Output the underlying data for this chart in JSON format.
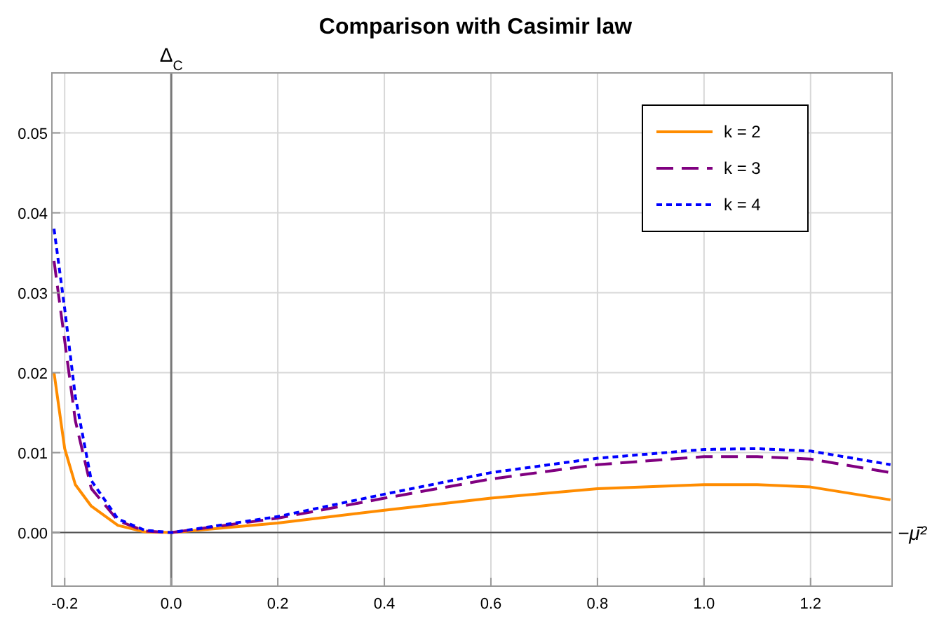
{
  "chart_data": {
    "type": "line",
    "title": "Comparison with Casimir law",
    "xlabel": "−μ̄²",
    "ylabel": "Δ$_{C}$",
    "x": [
      -0.22,
      -0.2,
      -0.18,
      -0.15,
      -0.1,
      -0.05,
      0,
      0.2,
      0.4,
      0.6,
      0.8,
      1.0,
      1.1,
      1.2,
      1.35
    ],
    "series": [
      {
        "name": "k = 2",
        "color": "#ff8c00",
        "line_style": "solid",
        "values": [
          0.02,
          0.0105,
          0.006,
          0.0033,
          0.0009,
          0.0001,
          0,
          0.0012,
          0.0028,
          0.0043,
          0.0055,
          0.006,
          0.006,
          0.0057,
          0.0041
        ]
      },
      {
        "name": "k = 3",
        "color": "#800080",
        "line_style": "dashed",
        "values": [
          0.034,
          0.024,
          0.014,
          0.0055,
          0.0015,
          0.0002,
          0,
          0.0018,
          0.0043,
          0.0067,
          0.0085,
          0.0095,
          0.0095,
          0.0092,
          0.0075
        ]
      },
      {
        "name": "k = 4",
        "color": "#0000ff",
        "line_style": "dotted",
        "values": [
          0.038,
          0.028,
          0.017,
          0.0065,
          0.0017,
          0.0003,
          0,
          0.002,
          0.0048,
          0.0075,
          0.0093,
          0.0104,
          0.0105,
          0.0102,
          0.0085
        ]
      }
    ],
    "xlim": [
      -0.224,
      1.353
    ],
    "ylim": [
      -0.0067,
      0.0575
    ],
    "xticks": [
      {
        "value": -0.2,
        "label": "-0.2"
      },
      {
        "value": 0,
        "label": "0.0"
      },
      {
        "value": 0.2,
        "label": "0.2"
      },
      {
        "value": 0.4,
        "label": "0.4"
      },
      {
        "value": 0.6,
        "label": "0.6"
      },
      {
        "value": 0.8,
        "label": "0.8"
      },
      {
        "value": 1.0,
        "label": "1.0"
      },
      {
        "value": 1.2,
        "label": "1.2"
      }
    ],
    "yticks": [
      {
        "value": 0,
        "label": "0.00"
      },
      {
        "value": 0.01,
        "label": "0.01"
      },
      {
        "value": 0.02,
        "label": "0.02"
      },
      {
        "value": 0.03,
        "label": "0.03"
      },
      {
        "value": 0.04,
        "label": "0.04"
      },
      {
        "value": 0.05,
        "label": "0.05"
      }
    ],
    "grid": true,
    "legend": "top right",
    "marker": "none"
  }
}
